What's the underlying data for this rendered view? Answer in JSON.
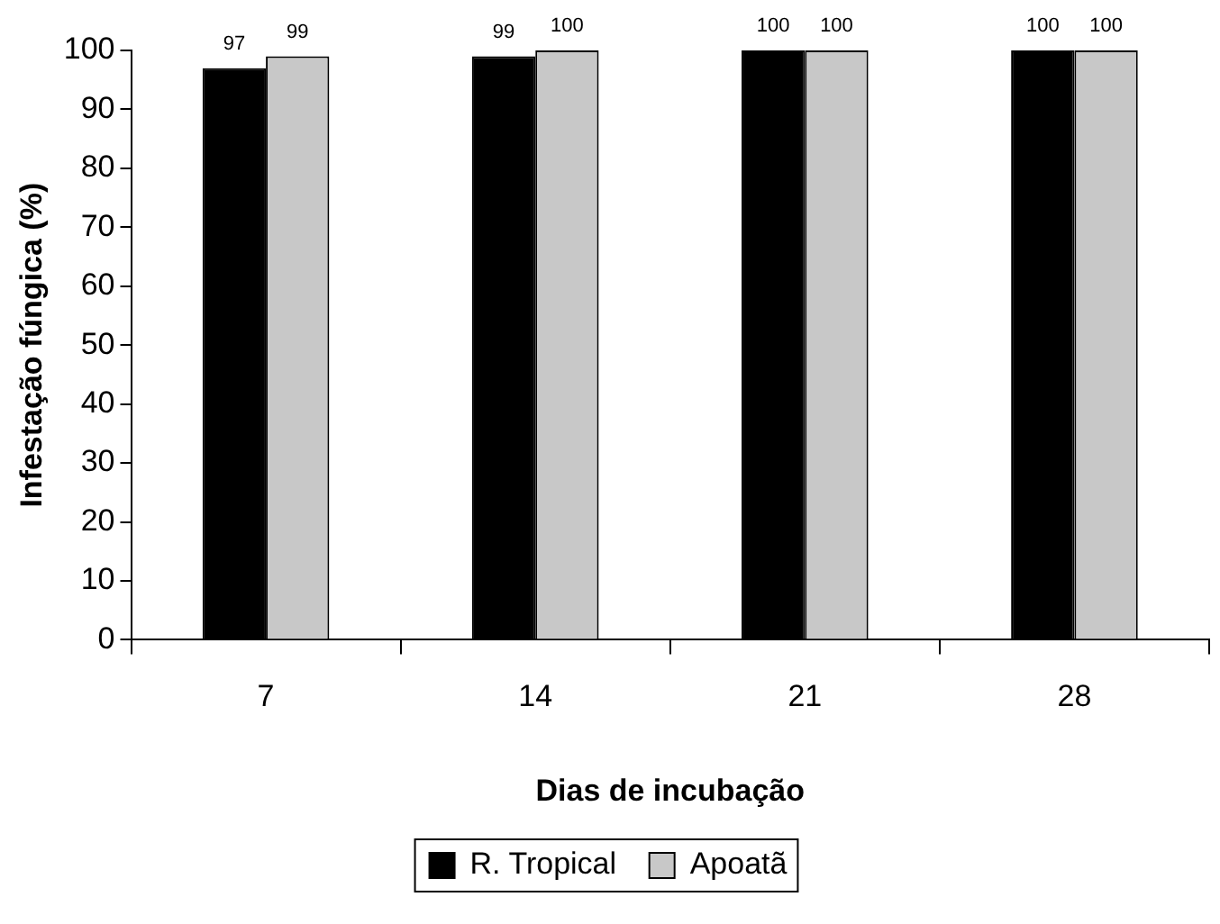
{
  "chart_data": {
    "type": "bar",
    "xlabel": "Dias de incubação",
    "ylabel": "Infestação fúngica (%)",
    "categories": [
      "7",
      "14",
      "21",
      "28"
    ],
    "series": [
      {
        "name": "R. Tropical",
        "color": "#000000",
        "values": [
          97,
          99,
          100,
          100
        ]
      },
      {
        "name": "Apoatã",
        "color": "#c8c8c8",
        "values": [
          99,
          100,
          100,
          100
        ]
      }
    ],
    "ylim": [
      0,
      100
    ],
    "yticks": [
      0,
      10,
      20,
      30,
      40,
      50,
      60,
      70,
      80,
      90,
      100
    ],
    "grid": false,
    "legend": "bottom",
    "data_labels": true
  }
}
